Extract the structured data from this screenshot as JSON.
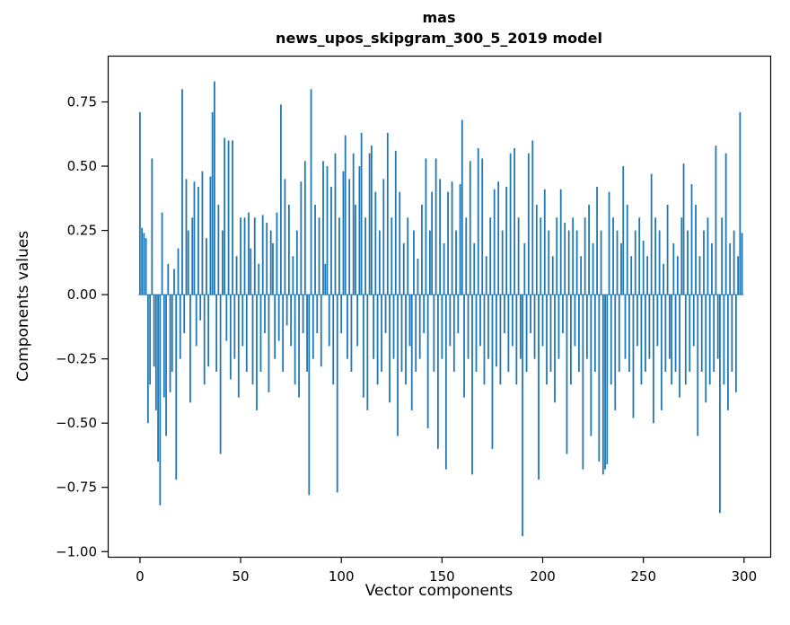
{
  "chart_data": {
    "type": "bar",
    "title": "mas",
    "subtitle": "news_upos_skipgram_300_5_2019 model",
    "xlabel": "Vector components",
    "ylabel": "Components values",
    "bar_color": "#1f77b4",
    "grid": false,
    "legend": null,
    "xlim": [
      -16,
      313
    ],
    "ylim": [
      -1.02,
      0.93
    ],
    "bar_width": 0.8,
    "n_components": 300,
    "xticks": [
      {
        "value": 0,
        "label": "0"
      },
      {
        "value": 50,
        "label": "50"
      },
      {
        "value": 100,
        "label": "100"
      },
      {
        "value": 150,
        "label": "150"
      },
      {
        "value": 200,
        "label": "200"
      },
      {
        "value": 250,
        "label": "250"
      },
      {
        "value": 300,
        "label": "300"
      }
    ],
    "yticks": [
      {
        "value": -1.0,
        "label": "−1.00"
      },
      {
        "value": -0.75,
        "label": "−0.75"
      },
      {
        "value": -0.5,
        "label": "−0.50"
      },
      {
        "value": -0.25,
        "label": "−0.25"
      },
      {
        "value": 0.0,
        "label": "0.00"
      },
      {
        "value": 0.25,
        "label": "0.25"
      },
      {
        "value": 0.5,
        "label": "0.50"
      },
      {
        "value": 0.75,
        "label": "0.75"
      }
    ],
    "values": [
      0.71,
      0.26,
      0.24,
      0.22,
      -0.5,
      -0.35,
      0.53,
      -0.28,
      -0.45,
      -0.65,
      -0.82,
      0.32,
      -0.4,
      -0.55,
      0.12,
      -0.38,
      -0.3,
      0.1,
      -0.72,
      0.18,
      -0.25,
      0.8,
      -0.15,
      0.45,
      0.25,
      -0.42,
      0.3,
      0.44,
      -0.2,
      0.42,
      -0.1,
      0.48,
      -0.35,
      0.22,
      -0.28,
      0.46,
      0.71,
      0.83,
      -0.3,
      0.35,
      -0.62,
      0.25,
      0.61,
      -0.18,
      0.6,
      -0.33,
      0.6,
      -0.25,
      0.15,
      -0.4,
      0.3,
      -0.2,
      0.3,
      -0.3,
      0.32,
      0.18,
      -0.35,
      0.3,
      -0.45,
      0.12,
      -0.3,
      0.31,
      -0.15,
      0.28,
      -0.38,
      0.25,
      0.2,
      -0.25,
      0.32,
      -0.18,
      0.74,
      -0.3,
      0.45,
      -0.12,
      0.35,
      -0.2,
      0.15,
      -0.35,
      0.25,
      -0.4,
      0.44,
      -0.15,
      0.52,
      -0.3,
      -0.78,
      0.8,
      -0.25,
      0.35,
      -0.15,
      0.3,
      -0.28,
      0.52,
      0.12,
      0.5,
      -0.2,
      0.42,
      -0.35,
      0.55,
      -0.77,
      0.3,
      -0.15,
      0.48,
      0.62,
      -0.25,
      0.45,
      -0.3,
      0.55,
      0.35,
      -0.2,
      0.5,
      0.63,
      -0.4,
      0.3,
      -0.45,
      0.55,
      0.58,
      -0.25,
      0.4,
      -0.35,
      0.25,
      -0.3,
      0.45,
      -0.15,
      0.63,
      -0.42,
      0.3,
      -0.25,
      0.56,
      -0.55,
      0.4,
      -0.3,
      0.2,
      -0.35,
      0.3,
      -0.2,
      -0.45,
      0.25,
      -0.3,
      0.14,
      -0.25,
      0.35,
      -0.15,
      0.53,
      -0.52,
      0.25,
      0.4,
      -0.3,
      0.53,
      -0.6,
      0.45,
      -0.25,
      0.2,
      -0.68,
      0.4,
      -0.2,
      0.44,
      -0.3,
      0.25,
      -0.15,
      0.43,
      0.68,
      -0.4,
      0.3,
      -0.25,
      0.52,
      -0.7,
      0.2,
      -0.3,
      0.57,
      -0.2,
      0.53,
      -0.35,
      0.15,
      -0.25,
      0.3,
      -0.6,
      0.41,
      -0.28,
      0.44,
      -0.35,
      0.25,
      -0.15,
      0.42,
      -0.3,
      0.55,
      -0.2,
      0.57,
      -0.35,
      0.3,
      -0.25,
      -0.94,
      0.2,
      -0.3,
      0.55,
      -0.15,
      0.6,
      -0.25,
      0.35,
      -0.72,
      0.3,
      -0.2,
      0.41,
      -0.35,
      0.25,
      -0.3,
      0.15,
      -0.42,
      0.3,
      -0.25,
      0.41,
      -0.15,
      0.28,
      -0.62,
      0.25,
      -0.35,
      0.3,
      -0.2,
      0.25,
      -0.3,
      0.15,
      -0.68,
      0.3,
      -0.25,
      0.35,
      -0.55,
      0.2,
      -0.3,
      0.42,
      -0.65,
      0.25,
      -0.7,
      -0.68,
      -0.66,
      0.4,
      -0.35,
      0.3,
      -0.45,
      0.25,
      -0.3,
      0.2,
      0.5,
      -0.25,
      0.35,
      -0.3,
      0.15,
      -0.48,
      0.25,
      -0.2,
      0.3,
      -0.35,
      0.21,
      -0.3,
      0.15,
      -0.25,
      0.47,
      -0.5,
      0.3,
      -0.2,
      0.25,
      -0.45,
      0.12,
      -0.3,
      0.35,
      -0.25,
      -0.35,
      0.2,
      -0.3,
      0.15,
      -0.4,
      0.3,
      0.51,
      -0.35,
      0.25,
      -0.3,
      0.43,
      -0.2,
      0.35,
      -0.55,
      0.15,
      -0.3,
      0.25,
      -0.42,
      0.3,
      -0.35,
      0.2,
      -0.3,
      0.58,
      -0.25,
      -0.85,
      0.3,
      -0.35,
      0.55,
      -0.45,
      0.2,
      -0.3,
      0.25,
      -0.38,
      0.15,
      0.71,
      0.24
    ]
  }
}
